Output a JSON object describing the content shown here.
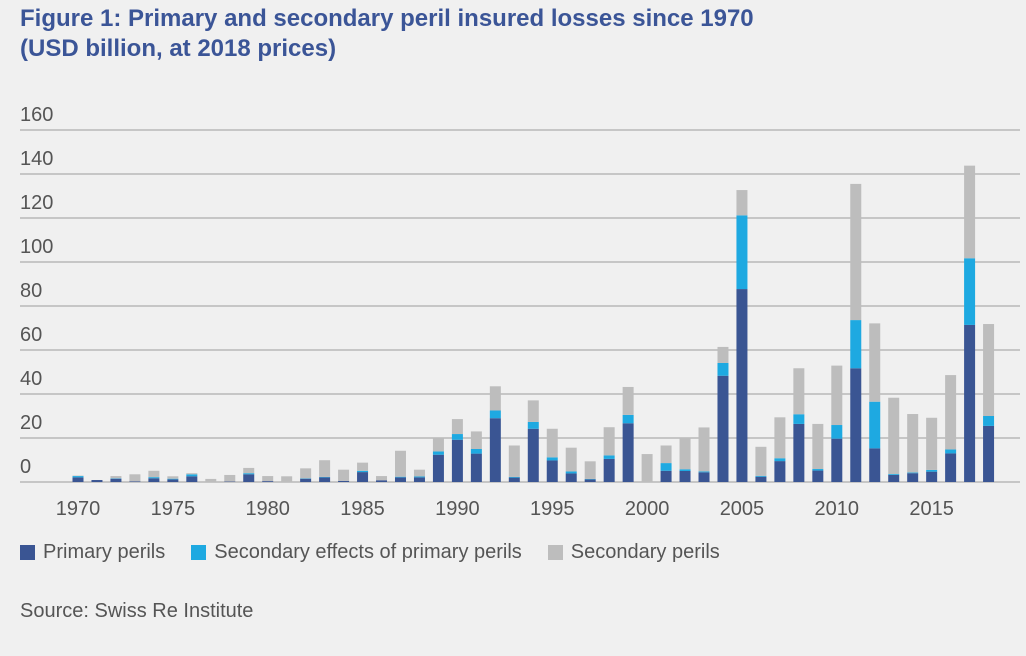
{
  "title_line1": "Figure 1: Primary and secondary peril insured losses since 1970",
  "title_line2": "(USD billion, at 2018 prices)",
  "source": "Source: Swiss Re Institute",
  "chart_data": {
    "type": "bar",
    "stacked": true,
    "title": "Figure 1: Primary and secondary peril insured losses since 1970 (USD billion, at 2018 prices)",
    "xlabel": "",
    "ylabel": "",
    "ylim": [
      0,
      160
    ],
    "yticks": [
      "0",
      "20",
      "40",
      "60",
      "80",
      "100",
      "120",
      "140",
      "160"
    ],
    "xtick_labels": [
      "1970",
      "1975",
      "1980",
      "1985",
      "1990",
      "1995",
      "2000",
      "2005",
      "2010",
      "2015"
    ],
    "grid": true,
    "legend_position": "bottom",
    "categories": [
      1970,
      1971,
      1972,
      1973,
      1974,
      1975,
      1976,
      1977,
      1978,
      1979,
      1980,
      1981,
      1982,
      1983,
      1984,
      1985,
      1986,
      1987,
      1988,
      1989,
      1990,
      1991,
      1992,
      1993,
      1994,
      1995,
      1996,
      1997,
      1998,
      1999,
      2000,
      2001,
      2002,
      2003,
      2004,
      2005,
      2006,
      2007,
      2008,
      2009,
      2010,
      2011,
      2012,
      2013,
      2014,
      2015,
      2016,
      2017,
      2018
    ],
    "series": [
      {
        "name": "Primary perils",
        "color": "#3a5593",
        "values": [
          2.1,
          0.9,
          1.5,
          0.3,
          1.7,
          1.2,
          2.6,
          0,
          0.2,
          3.5,
          0.4,
          0,
          1.5,
          2.1,
          0.5,
          4.5,
          0.8,
          2.1,
          2.1,
          12.4,
          19.2,
          12.9,
          29.0,
          2.0,
          24.2,
          9.8,
          3.9,
          1.2,
          10.5,
          26.7,
          0,
          5.1,
          5.0,
          4.4,
          48.3,
          87.7,
          2.4,
          9.5,
          26.4,
          5.2,
          19.7,
          51.7,
          15.3,
          3.2,
          4.0,
          4.7,
          13.0,
          71.4,
          25.5
        ]
      },
      {
        "name": "Secondary effects of primary perils",
        "color": "#1ea9e1",
        "values": [
          0.6,
          0,
          0.2,
          0,
          0.5,
          0.3,
          0.9,
          0,
          0,
          0.5,
          0,
          0,
          0.2,
          0.2,
          0,
          0.6,
          0,
          0.3,
          0.4,
          1.5,
          2.6,
          2.1,
          3.5,
          0.3,
          3.1,
          1.4,
          0.9,
          0.2,
          1.6,
          3.8,
          0,
          3.5,
          0.8,
          0.4,
          5.8,
          33.5,
          0.4,
          1.3,
          4.4,
          0.7,
          6.2,
          21.9,
          21.2,
          0.4,
          0.3,
          0.8,
          1.8,
          30.3,
          4.5
        ]
      },
      {
        "name": "Secondary perils",
        "color": "#bdbdbd",
        "values": [
          0.2,
          0,
          1.0,
          3.2,
          2.9,
          1.1,
          0.5,
          1.4,
          3.0,
          2.4,
          2.3,
          2.6,
          4.5,
          7.6,
          5.1,
          3.7,
          1.9,
          11.8,
          3.1,
          6.0,
          6.8,
          8.0,
          11.0,
          14.3,
          9.8,
          13.0,
          10.8,
          8.0,
          12.8,
          12.7,
          12.7,
          8.0,
          14.2,
          20.0,
          7.3,
          11.5,
          13.2,
          18.6,
          20.9,
          20.5,
          27.0,
          61.9,
          35.6,
          34.7,
          26.6,
          23.7,
          33.8,
          42.1,
          41.8
        ]
      }
    ]
  }
}
